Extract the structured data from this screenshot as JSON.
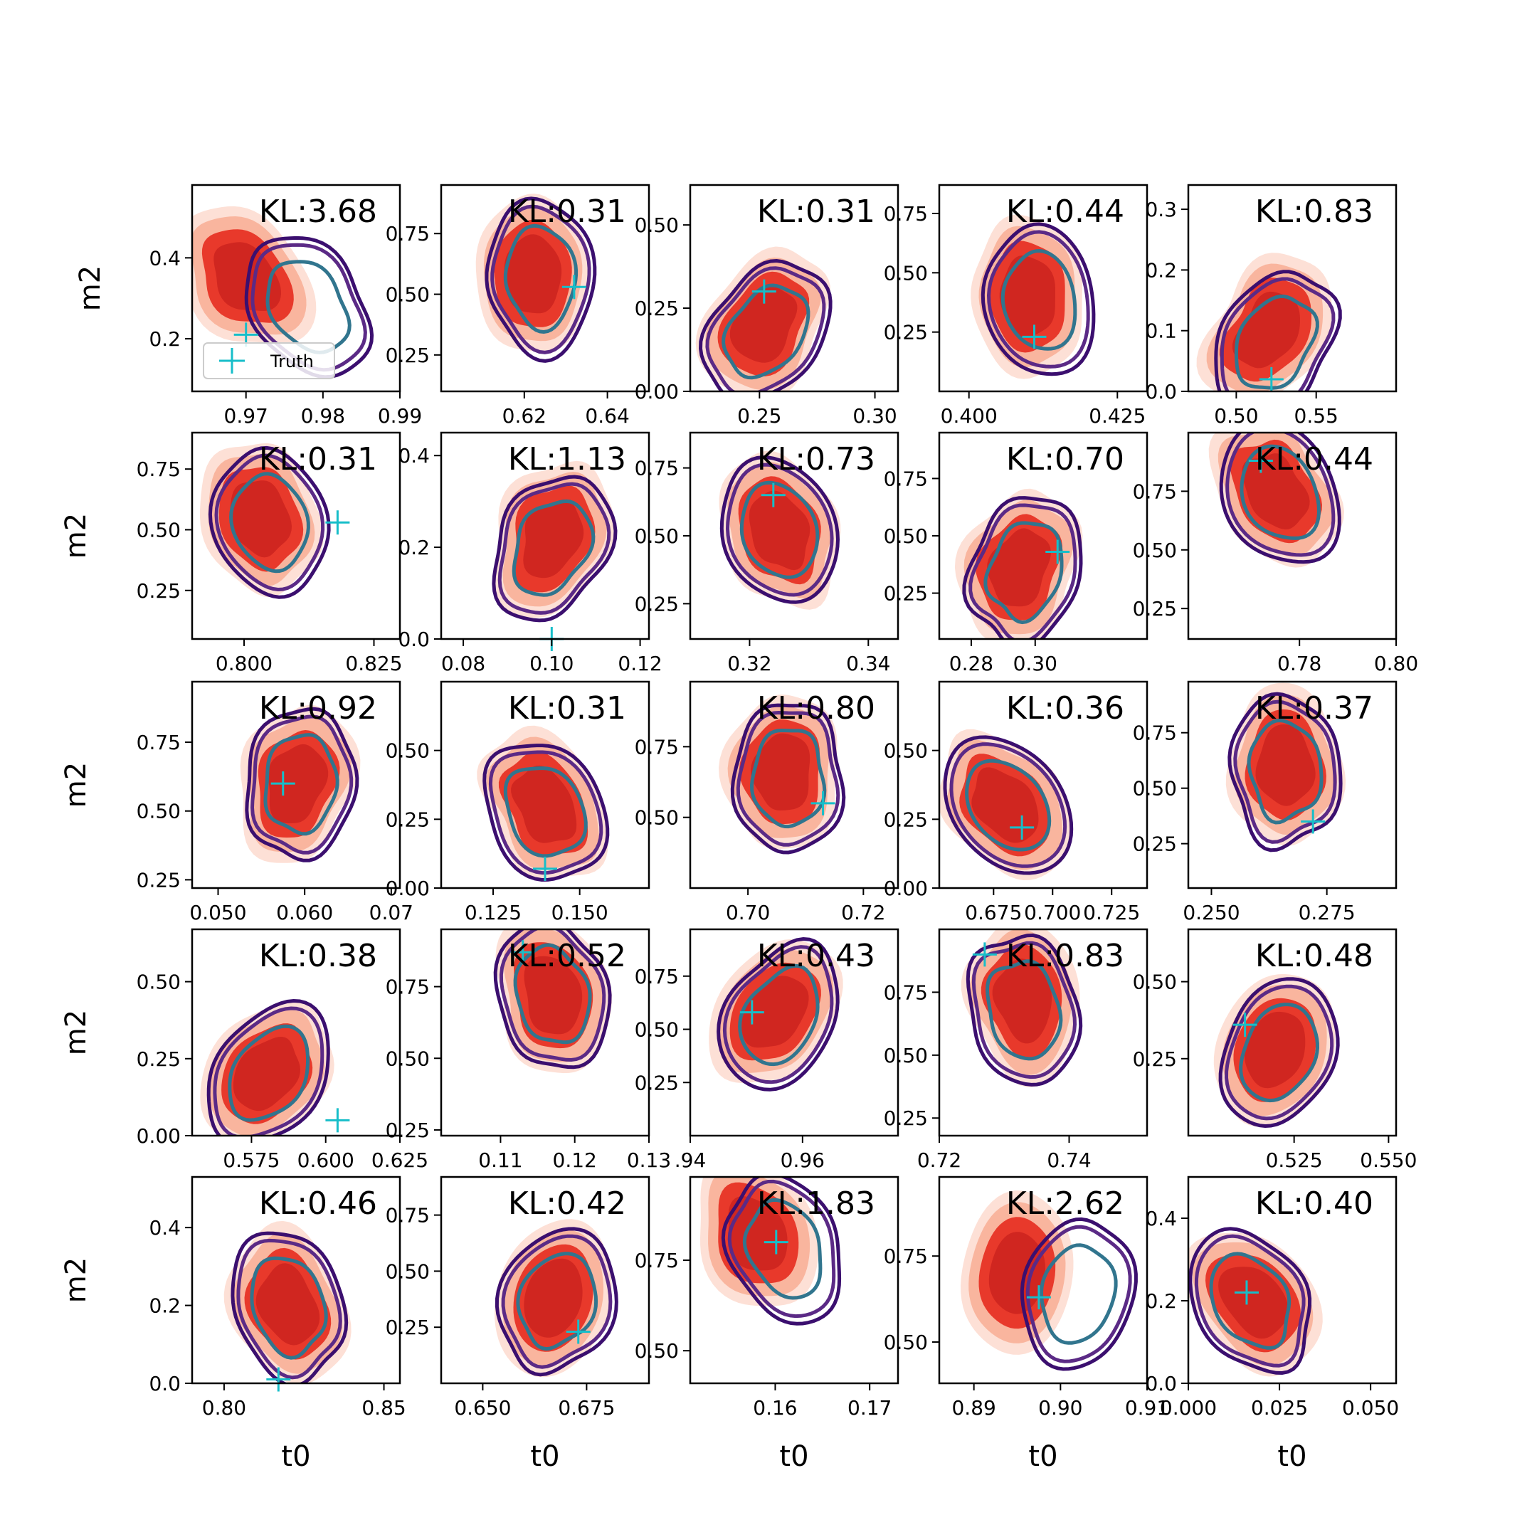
{
  "chart_data": {
    "type": "contour-grid",
    "grid": {
      "rows": 5,
      "cols": 5
    },
    "xlabel": "t0",
    "ylabel": "m2",
    "legend": {
      "label": "Truth",
      "marker": "+",
      "placement": "lower-left",
      "panel": 0
    },
    "colors": {
      "truth_marker": "#17bec9",
      "filled_outer": "#fde0d6",
      "filled_mid": "#f9b59e",
      "filled_inner": "#e8392b",
      "filled_core": "#d02620",
      "line_outer": "#3b0f6f",
      "line_mid": "#5b2a86",
      "line_inner": "#31758e"
    },
    "panels": [
      {
        "kl": "KL:3.68",
        "xlim": [
          0.963,
          0.99
        ],
        "ylim": [
          0.07,
          0.58
        ],
        "xticks": [
          "0.97",
          "0.98",
          "0.99"
        ],
        "xtick_values": [
          0.97,
          0.98,
          0.99
        ],
        "yticks": [
          "0.2",
          "0.4"
        ],
        "ytick_values": [
          0.2,
          0.4
        ],
        "truth": [
          0.97,
          0.21
        ],
        "fill_center": [
          0.97,
          0.35
        ],
        "line_center": [
          0.978,
          0.28
        ]
      },
      {
        "kl": "KL:0.31",
        "xlim": [
          0.6,
          0.65
        ],
        "ylim": [
          0.1,
          0.95
        ],
        "xticks": [
          "0.62",
          "0.64"
        ],
        "xtick_values": [
          0.62,
          0.64
        ],
        "yticks": [
          "0.25",
          "0.50",
          "0.75"
        ],
        "ytick_values": [
          0.25,
          0.5,
          0.75
        ],
        "truth": [
          0.632,
          0.53
        ],
        "fill_center": [
          0.622,
          0.58
        ],
        "line_center": [
          0.624,
          0.57
        ]
      },
      {
        "kl": "KL:0.31",
        "xlim": [
          0.22,
          0.31
        ],
        "ylim": [
          0.0,
          0.62
        ],
        "xticks": [
          "0.25",
          "0.30"
        ],
        "xtick_values": [
          0.25,
          0.3
        ],
        "yticks": [
          "0.00",
          "0.25",
          "0.50"
        ],
        "ytick_values": [
          0.0,
          0.25,
          0.5
        ],
        "truth": [
          0.252,
          0.3
        ],
        "fill_center": [
          0.252,
          0.2
        ],
        "line_center": [
          0.253,
          0.18
        ]
      },
      {
        "kl": "KL:0.44",
        "xlim": [
          0.395,
          0.43
        ],
        "ylim": [
          0.0,
          0.87
        ],
        "xticks": [
          "0.400",
          "0.425"
        ],
        "xtick_values": [
          0.4,
          0.425
        ],
        "yticks": [
          "0.25",
          "0.50",
          "0.75"
        ],
        "ytick_values": [
          0.25,
          0.5,
          0.75
        ],
        "truth": [
          0.411,
          0.23
        ],
        "fill_center": [
          0.41,
          0.4
        ],
        "line_center": [
          0.412,
          0.38
        ]
      },
      {
        "kl": "KL:0.83",
        "xlim": [
          0.47,
          0.6
        ],
        "ylim": [
          0.0,
          0.34
        ],
        "xticks": [
          "0.50",
          "0.55"
        ],
        "xtick_values": [
          0.5,
          0.55
        ],
        "yticks": [
          "0.0",
          "0.1",
          "0.2",
          "0.3"
        ],
        "ytick_values": [
          0.0,
          0.1,
          0.2,
          0.3
        ],
        "truth": [
          0.522,
          0.02
        ],
        "fill_center": [
          0.52,
          0.1
        ],
        "line_center": [
          0.524,
          0.08
        ]
      },
      {
        "kl": "KL:0.31",
        "xlim": [
          0.79,
          0.83
        ],
        "ylim": [
          0.05,
          0.9
        ],
        "xticks": [
          "0.800",
          "0.825"
        ],
        "xtick_values": [
          0.8,
          0.825
        ],
        "yticks": [
          "0.25",
          "0.50",
          "0.75"
        ],
        "ytick_values": [
          0.25,
          0.5,
          0.75
        ],
        "truth": [
          0.818,
          0.53
        ],
        "fill_center": [
          0.803,
          0.55
        ],
        "line_center": [
          0.805,
          0.53
        ]
      },
      {
        "kl": "KL:1.13",
        "xlim": [
          0.075,
          0.122
        ],
        "ylim": [
          0.0,
          0.45
        ],
        "xticks": [
          "0.08",
          "0.10",
          "0.12"
        ],
        "xtick_values": [
          0.08,
          0.1,
          0.12
        ],
        "yticks": [
          "0.0",
          "0.2",
          "0.4"
        ],
        "ytick_values": [
          0.0,
          0.2,
          0.4
        ],
        "truth": [
          0.1,
          0.0
        ],
        "fill_center": [
          0.1,
          0.22
        ],
        "line_center": [
          0.1,
          0.2
        ]
      },
      {
        "kl": "KL:0.73",
        "xlim": [
          0.31,
          0.345
        ],
        "ylim": [
          0.12,
          0.88
        ],
        "xticks": [
          "0.32",
          "0.34"
        ],
        "xtick_values": [
          0.32,
          0.34
        ],
        "yticks": [
          "0.25",
          "0.50",
          "0.75"
        ],
        "ytick_values": [
          0.25,
          0.5,
          0.75
        ],
        "truth": [
          0.324,
          0.65
        ],
        "fill_center": [
          0.325,
          0.52
        ],
        "line_center": [
          0.325,
          0.52
        ]
      },
      {
        "kl": "KL:0.70",
        "xlim": [
          0.27,
          0.335
        ],
        "ylim": [
          0.05,
          0.95
        ],
        "xticks": [
          "0.28",
          "0.30"
        ],
        "xtick_values": [
          0.28,
          0.3
        ],
        "yticks": [
          "0.25",
          "0.50",
          "0.75"
        ],
        "ytick_values": [
          0.25,
          0.5,
          0.75
        ],
        "truth": [
          0.307,
          0.43
        ],
        "fill_center": [
          0.295,
          0.36
        ],
        "line_center": [
          0.297,
          0.35
        ]
      },
      {
        "kl": "KL:0.44",
        "xlim": [
          0.757,
          0.8
        ],
        "ylim": [
          0.12,
          1.0
        ],
        "xticks": [
          "0.78",
          "0.80"
        ],
        "xtick_values": [
          0.78,
          0.8
        ],
        "yticks": [
          "0.25",
          "0.50",
          "0.75"
        ],
        "ytick_values": [
          0.25,
          0.5,
          0.75
        ],
        "truth": [
          0.772,
          0.88
        ],
        "fill_center": [
          0.775,
          0.75
        ],
        "line_center": [
          0.776,
          0.74
        ]
      },
      {
        "kl": "KL:0.92",
        "xlim": [
          0.047,
          0.071
        ],
        "ylim": [
          0.22,
          0.97
        ],
        "xticks": [
          "0.050",
          "0.060",
          "0.07"
        ],
        "xtick_values": [
          0.05,
          0.06,
          0.07
        ],
        "yticks": [
          "0.25",
          "0.50",
          "0.75"
        ],
        "ytick_values": [
          0.25,
          0.5,
          0.75
        ],
        "truth": [
          0.0575,
          0.6
        ],
        "fill_center": [
          0.059,
          0.6
        ],
        "line_center": [
          0.0595,
          0.6
        ]
      },
      {
        "kl": "KL:0.31",
        "xlim": [
          0.11,
          0.17
        ],
        "ylim": [
          0.0,
          0.75
        ],
        "xticks": [
          "0.125",
          "0.150"
        ],
        "xtick_values": [
          0.125,
          0.15
        ],
        "yticks": [
          "0.00",
          "0.25",
          "0.50"
        ],
        "ytick_values": [
          0.0,
          0.25,
          0.5
        ],
        "truth": [
          0.14,
          0.07
        ],
        "fill_center": [
          0.14,
          0.3
        ],
        "line_center": [
          0.14,
          0.28
        ]
      },
      {
        "kl": "KL:0.80",
        "xlim": [
          0.69,
          0.726
        ],
        "ylim": [
          0.25,
          0.98
        ],
        "xticks": [
          "0.70",
          "0.72"
        ],
        "xtick_values": [
          0.7,
          0.72
        ],
        "yticks": [
          "0.50",
          "0.75"
        ],
        "ytick_values": [
          0.5,
          0.75
        ],
        "truth": [
          0.713,
          0.55
        ],
        "fill_center": [
          0.706,
          0.66
        ],
        "line_center": [
          0.707,
          0.64
        ]
      },
      {
        "kl": "KL:0.36",
        "xlim": [
          0.652,
          0.74
        ],
        "ylim": [
          0.0,
          0.75
        ],
        "xticks": [
          "0.675",
          "0.700",
          "0.725"
        ],
        "xtick_values": [
          0.675,
          0.7,
          0.725
        ],
        "yticks": [
          "0.00",
          "0.25",
          "0.50"
        ],
        "ytick_values": [
          0.0,
          0.25,
          0.5
        ],
        "truth": [
          0.687,
          0.22
        ],
        "fill_center": [
          0.68,
          0.3
        ],
        "line_center": [
          0.681,
          0.3
        ]
      },
      {
        "kl": "KL:0.37",
        "xlim": [
          0.245,
          0.29
        ],
        "ylim": [
          0.05,
          0.98
        ],
        "xticks": [
          "0.250",
          "0.275"
        ],
        "xtick_values": [
          0.25,
          0.275
        ],
        "yticks": [
          "0.25",
          "0.50",
          "0.75"
        ],
        "ytick_values": [
          0.25,
          0.5,
          0.75
        ],
        "truth": [
          0.272,
          0.35
        ],
        "fill_center": [
          0.266,
          0.6
        ],
        "line_center": [
          0.266,
          0.58
        ]
      },
      {
        "kl": "KL:0.38",
        "xlim": [
          0.555,
          0.625
        ],
        "ylim": [
          0.0,
          0.67
        ],
        "xticks": [
          "0.575",
          "0.600",
          "0.625"
        ],
        "xtick_values": [
          0.575,
          0.6,
          0.625
        ],
        "yticks": [
          "0.00",
          "0.25",
          "0.50"
        ],
        "ytick_values": [
          0.0,
          0.25,
          0.5
        ],
        "truth": [
          0.604,
          0.05
        ],
        "fill_center": [
          0.58,
          0.2
        ],
        "line_center": [
          0.581,
          0.2
        ]
      },
      {
        "kl": "KL:0.52",
        "xlim": [
          0.102,
          0.13
        ],
        "ylim": [
          0.23,
          0.95
        ],
        "xticks": [
          "0.11",
          "0.12",
          "0.13"
        ],
        "xtick_values": [
          0.11,
          0.12,
          0.13
        ],
        "yticks": [
          "0.25",
          "0.50",
          "0.75"
        ],
        "ytick_values": [
          0.25,
          0.5,
          0.75
        ],
        "truth": [
          0.113,
          0.87
        ],
        "fill_center": [
          0.117,
          0.72
        ],
        "line_center": [
          0.117,
          0.72
        ]
      },
      {
        "kl": "KL:0.43",
        "xlim": [
          0.94,
          0.977
        ],
        "ylim": [
          0.0,
          0.97
        ],
        "xticks": [
          ".94",
          "0.96"
        ],
        "xtick_values": [
          0.94,
          0.96
        ],
        "yticks": [
          "0.25",
          "0.50",
          "0.75"
        ],
        "ytick_values": [
          0.25,
          0.5,
          0.75
        ],
        "truth": [
          0.951,
          0.58
        ],
        "fill_center": [
          0.955,
          0.58
        ],
        "line_center": [
          0.956,
          0.56
        ]
      },
      {
        "kl": "KL:0.83",
        "xlim": [
          0.72,
          0.752
        ],
        "ylim": [
          0.18,
          1.0
        ],
        "xticks": [
          "0.72",
          "0.74"
        ],
        "xtick_values": [
          0.72,
          0.74
        ],
        "yticks": [
          "0.25",
          "0.50",
          "0.75"
        ],
        "ytick_values": [
          0.25,
          0.5,
          0.75
        ],
        "truth": [
          0.727,
          0.9
        ],
        "fill_center": [
          0.733,
          0.72
        ],
        "line_center": [
          0.733,
          0.68
        ]
      },
      {
        "kl": "KL:0.48",
        "xlim": [
          0.497,
          0.552
        ],
        "ylim": [
          0.0,
          0.67
        ],
        "xticks": [
          "0.525",
          "0.550"
        ],
        "xtick_values": [
          0.525,
          0.55
        ],
        "yticks": [
          "0.25",
          "0.50"
        ],
        "ytick_values": [
          0.25,
          0.5
        ],
        "truth": [
          0.512,
          0.36
        ],
        "fill_center": [
          0.52,
          0.28
        ],
        "line_center": [
          0.521,
          0.27
        ]
      },
      {
        "kl": "KL:0.46",
        "xlim": [
          0.79,
          0.855
        ],
        "ylim": [
          0.0,
          0.53
        ],
        "xticks": [
          "0.80",
          "0.85"
        ],
        "xtick_values": [
          0.8,
          0.85
        ],
        "yticks": [
          "0.0",
          "0.2",
          "0.4"
        ],
        "ytick_values": [
          0.0,
          0.2,
          0.4
        ],
        "truth": [
          0.817,
          0.01
        ],
        "fill_center": [
          0.82,
          0.2
        ],
        "line_center": [
          0.82,
          0.2
        ]
      },
      {
        "kl": "KL:0.42",
        "xlim": [
          0.64,
          0.69
        ],
        "ylim": [
          0.0,
          0.92
        ],
        "xticks": [
          "0.650",
          "0.675"
        ],
        "xtick_values": [
          0.65,
          0.675
        ],
        "yticks": [
          "0.25",
          "0.50",
          "0.75"
        ],
        "ytick_values": [
          0.25,
          0.5,
          0.75
        ],
        "truth": [
          0.673,
          0.23
        ],
        "fill_center": [
          0.667,
          0.38
        ],
        "line_center": [
          0.668,
          0.37
        ]
      },
      {
        "kl": "KL:1.83",
        "xlim": [
          0.151,
          0.173
        ],
        "ylim": [
          0.41,
          0.98
        ],
        "xticks": [
          "0.16",
          "0.17"
        ],
        "xtick_values": [
          0.16,
          0.17
        ],
        "yticks": [
          "0.50",
          "0.75"
        ],
        "ytick_values": [
          0.5,
          0.75
        ],
        "truth": [
          0.1601,
          0.8
        ],
        "fill_center": [
          0.158,
          0.82
        ],
        "line_center": [
          0.161,
          0.78
        ]
      },
      {
        "kl": "KL:2.62",
        "xlim": [
          0.886,
          0.91
        ],
        "ylim": [
          0.38,
          0.98
        ],
        "xticks": [
          "0.89",
          "0.90",
          "0.91"
        ],
        "xtick_values": [
          0.89,
          0.9,
          0.91
        ],
        "yticks": [
          "0.50",
          "0.75"
        ],
        "ytick_values": [
          0.5,
          0.75
        ],
        "truth": [
          0.8975,
          0.63
        ],
        "fill_center": [
          0.895,
          0.7
        ],
        "line_center": [
          0.902,
          0.64
        ]
      },
      {
        "kl": "KL:0.40",
        "xlim": [
          0.0,
          0.057
        ],
        "ylim": [
          0.0,
          0.5
        ],
        "xticks": [
          "0.000",
          "0.025",
          "0.050"
        ],
        "xtick_values": [
          0.0,
          0.025,
          0.05
        ],
        "yticks": [
          "0.0",
          "0.2",
          "0.4"
        ],
        "ytick_values": [
          0.0,
          0.2,
          0.4
        ],
        "truth": [
          0.016,
          0.22
        ],
        "fill_center": [
          0.018,
          0.2
        ],
        "line_center": [
          0.017,
          0.2
        ]
      }
    ]
  }
}
